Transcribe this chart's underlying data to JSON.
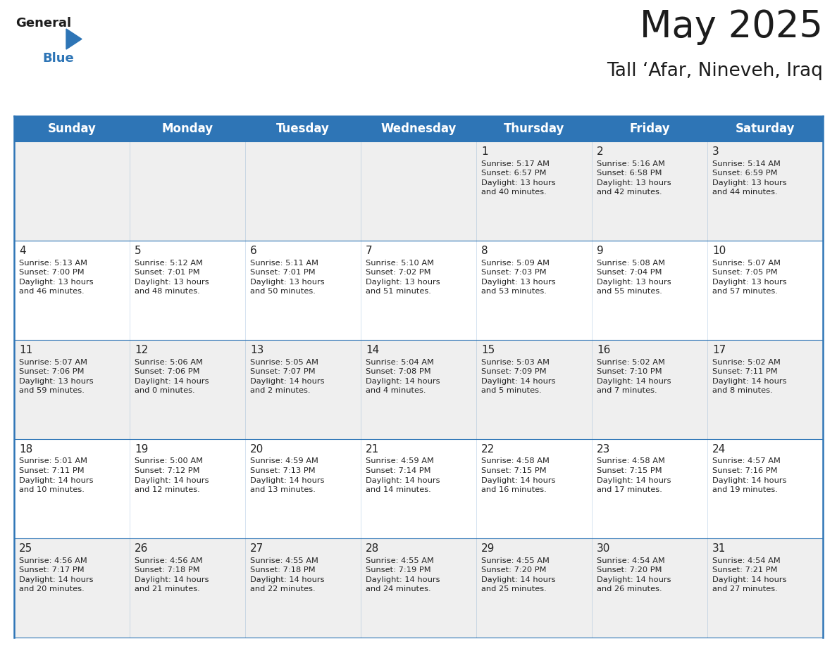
{
  "title": "May 2025",
  "subtitle": "Tall ‘Afar, Nineveh, Iraq",
  "days_of_week": [
    "Sunday",
    "Monday",
    "Tuesday",
    "Wednesday",
    "Thursday",
    "Friday",
    "Saturday"
  ],
  "header_bg": "#2E75B6",
  "header_text": "#FFFFFF",
  "cell_bg_light": "#EFEFEF",
  "cell_bg_white": "#FFFFFF",
  "cell_text": "#222222",
  "day_num_color": "#222222",
  "line_color": "#2E75B6",
  "calendar_data": [
    [
      null,
      null,
      null,
      null,
      {
        "day": 1,
        "sunrise": "5:17 AM",
        "sunset": "6:57 PM",
        "daylight_hours": 13,
        "daylight_mins": 40
      },
      {
        "day": 2,
        "sunrise": "5:16 AM",
        "sunset": "6:58 PM",
        "daylight_hours": 13,
        "daylight_mins": 42
      },
      {
        "day": 3,
        "sunrise": "5:14 AM",
        "sunset": "6:59 PM",
        "daylight_hours": 13,
        "daylight_mins": 44
      }
    ],
    [
      {
        "day": 4,
        "sunrise": "5:13 AM",
        "sunset": "7:00 PM",
        "daylight_hours": 13,
        "daylight_mins": 46
      },
      {
        "day": 5,
        "sunrise": "5:12 AM",
        "sunset": "7:01 PM",
        "daylight_hours": 13,
        "daylight_mins": 48
      },
      {
        "day": 6,
        "sunrise": "5:11 AM",
        "sunset": "7:01 PM",
        "daylight_hours": 13,
        "daylight_mins": 50
      },
      {
        "day": 7,
        "sunrise": "5:10 AM",
        "sunset": "7:02 PM",
        "daylight_hours": 13,
        "daylight_mins": 51
      },
      {
        "day": 8,
        "sunrise": "5:09 AM",
        "sunset": "7:03 PM",
        "daylight_hours": 13,
        "daylight_mins": 53
      },
      {
        "day": 9,
        "sunrise": "5:08 AM",
        "sunset": "7:04 PM",
        "daylight_hours": 13,
        "daylight_mins": 55
      },
      {
        "day": 10,
        "sunrise": "5:07 AM",
        "sunset": "7:05 PM",
        "daylight_hours": 13,
        "daylight_mins": 57
      }
    ],
    [
      {
        "day": 11,
        "sunrise": "5:07 AM",
        "sunset": "7:06 PM",
        "daylight_hours": 13,
        "daylight_mins": 59
      },
      {
        "day": 12,
        "sunrise": "5:06 AM",
        "sunset": "7:06 PM",
        "daylight_hours": 14,
        "daylight_mins": 0
      },
      {
        "day": 13,
        "sunrise": "5:05 AM",
        "sunset": "7:07 PM",
        "daylight_hours": 14,
        "daylight_mins": 2
      },
      {
        "day": 14,
        "sunrise": "5:04 AM",
        "sunset": "7:08 PM",
        "daylight_hours": 14,
        "daylight_mins": 4
      },
      {
        "day": 15,
        "sunrise": "5:03 AM",
        "sunset": "7:09 PM",
        "daylight_hours": 14,
        "daylight_mins": 5
      },
      {
        "day": 16,
        "sunrise": "5:02 AM",
        "sunset": "7:10 PM",
        "daylight_hours": 14,
        "daylight_mins": 7
      },
      {
        "day": 17,
        "sunrise": "5:02 AM",
        "sunset": "7:11 PM",
        "daylight_hours": 14,
        "daylight_mins": 8
      }
    ],
    [
      {
        "day": 18,
        "sunrise": "5:01 AM",
        "sunset": "7:11 PM",
        "daylight_hours": 14,
        "daylight_mins": 10
      },
      {
        "day": 19,
        "sunrise": "5:00 AM",
        "sunset": "7:12 PM",
        "daylight_hours": 14,
        "daylight_mins": 12
      },
      {
        "day": 20,
        "sunrise": "4:59 AM",
        "sunset": "7:13 PM",
        "daylight_hours": 14,
        "daylight_mins": 13
      },
      {
        "day": 21,
        "sunrise": "4:59 AM",
        "sunset": "7:14 PM",
        "daylight_hours": 14,
        "daylight_mins": 14
      },
      {
        "day": 22,
        "sunrise": "4:58 AM",
        "sunset": "7:15 PM",
        "daylight_hours": 14,
        "daylight_mins": 16
      },
      {
        "day": 23,
        "sunrise": "4:58 AM",
        "sunset": "7:15 PM",
        "daylight_hours": 14,
        "daylight_mins": 17
      },
      {
        "day": 24,
        "sunrise": "4:57 AM",
        "sunset": "7:16 PM",
        "daylight_hours": 14,
        "daylight_mins": 19
      }
    ],
    [
      {
        "day": 25,
        "sunrise": "4:56 AM",
        "sunset": "7:17 PM",
        "daylight_hours": 14,
        "daylight_mins": 20
      },
      {
        "day": 26,
        "sunrise": "4:56 AM",
        "sunset": "7:18 PM",
        "daylight_hours": 14,
        "daylight_mins": 21
      },
      {
        "day": 27,
        "sunrise": "4:55 AM",
        "sunset": "7:18 PM",
        "daylight_hours": 14,
        "daylight_mins": 22
      },
      {
        "day": 28,
        "sunrise": "4:55 AM",
        "sunset": "7:19 PM",
        "daylight_hours": 14,
        "daylight_mins": 24
      },
      {
        "day": 29,
        "sunrise": "4:55 AM",
        "sunset": "7:20 PM",
        "daylight_hours": 14,
        "daylight_mins": 25
      },
      {
        "day": 30,
        "sunrise": "4:54 AM",
        "sunset": "7:20 PM",
        "daylight_hours": 14,
        "daylight_mins": 26
      },
      {
        "day": 31,
        "sunrise": "4:54 AM",
        "sunset": "7:21 PM",
        "daylight_hours": 14,
        "daylight_mins": 27
      }
    ]
  ],
  "title_fontsize": 38,
  "subtitle_fontsize": 19,
  "header_fontsize": 12,
  "day_num_fontsize": 11,
  "cell_fontsize": 8.2
}
